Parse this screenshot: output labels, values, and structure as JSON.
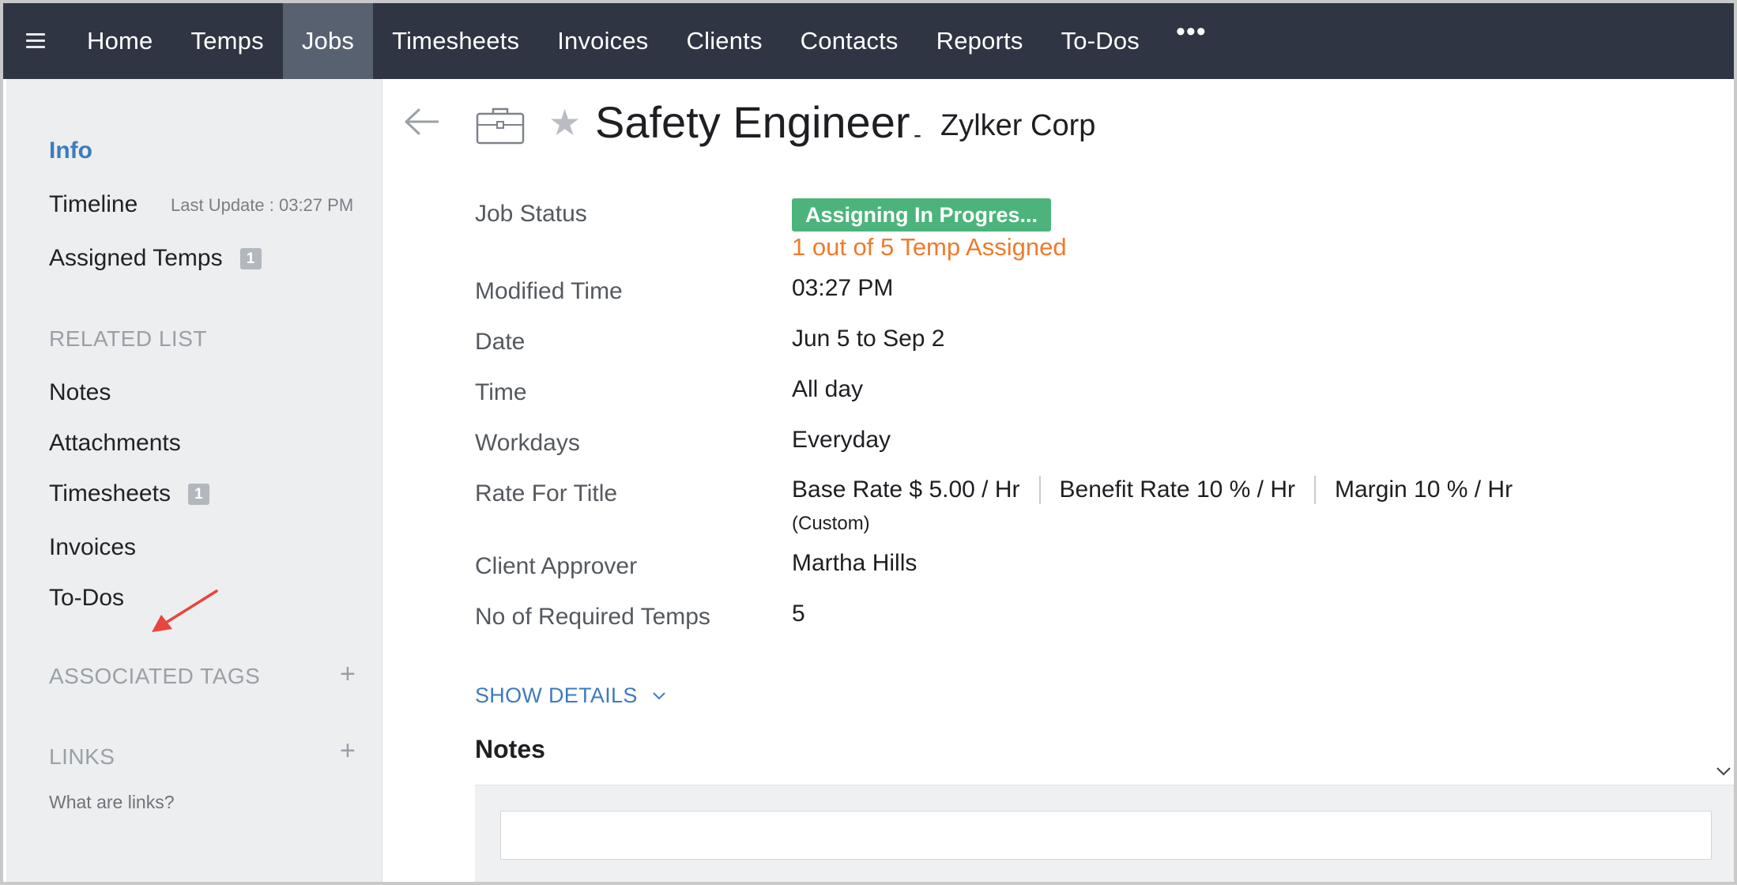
{
  "nav": {
    "items": [
      {
        "label": "Home",
        "active": false
      },
      {
        "label": "Temps",
        "active": false
      },
      {
        "label": "Jobs",
        "active": true
      },
      {
        "label": "Timesheets",
        "active": false
      },
      {
        "label": "Invoices",
        "active": false
      },
      {
        "label": "Clients",
        "active": false
      },
      {
        "label": "Contacts",
        "active": false
      },
      {
        "label": "Reports",
        "active": false
      },
      {
        "label": "To-Dos",
        "active": false
      }
    ],
    "more_label": "•••",
    "bg_color": "#2f3542",
    "active_color": "#586170"
  },
  "sidebar": {
    "info": "Info",
    "timeline": "Timeline",
    "timeline_meta": "Last Update : 03:27 PM",
    "assigned_temps": "Assigned Temps",
    "assigned_temps_count": "1",
    "related_list_heading": "RELATED LIST",
    "related": {
      "notes": "Notes",
      "attachments": "Attachments",
      "timesheets": "Timesheets",
      "timesheets_count": "1",
      "invoices": "Invoices",
      "todos": "To-Dos"
    },
    "associated_tags_heading": "ASSOCIATED TAGS",
    "links_heading": "LINKS",
    "links_help": "What are links?",
    "plus_symbol": "+"
  },
  "header": {
    "title": "Safety Engineer",
    "separator": "-",
    "client": "Zylker Corp",
    "star_symbol": "★"
  },
  "fields": {
    "job_status_label": "Job Status",
    "job_status_badge": "Assigning In Progres...",
    "job_status_sub": "1 out of 5 Temp Assigned",
    "modified_time_label": "Modified Time",
    "modified_time": "03:27 PM",
    "date_label": "Date",
    "date": "Jun 5 to Sep 2",
    "time_label": "Time",
    "time": "All day",
    "workdays_label": "Workdays",
    "workdays": "Everyday",
    "rate_label": "Rate For Title",
    "base_rate": "Base Rate $ 5.00 / Hr",
    "benefit_rate": "Benefit Rate 10 % / Hr",
    "margin": "Margin 10 % / Hr",
    "rate_custom": "(Custom)",
    "client_approver_label": "Client Approver",
    "client_approver": "Martha Hills",
    "required_temps_label": "No of Required Temps",
    "required_temps": "5"
  },
  "show_details": "SHOW DETAILS",
  "notes": {
    "title": "Notes",
    "input_value": ""
  },
  "colors": {
    "accent_blue": "#3d7bbf",
    "status_green": "#4cb47b",
    "status_orange": "#ef7b2a",
    "annotation_red": "#e8453c"
  },
  "icons": {
    "menu": "hamburger-icon",
    "back": "back-arrow-icon",
    "job": "briefcase-icon",
    "favorite": "star-icon",
    "expand": "chevron-down-icon",
    "add": "plus-icon",
    "annotation": "red-arrow-annotation"
  }
}
